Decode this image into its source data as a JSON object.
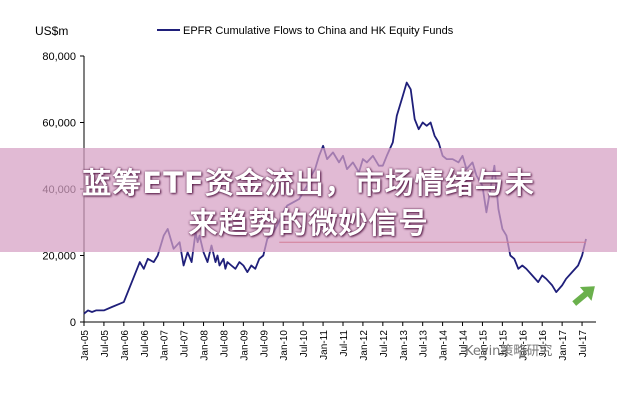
{
  "chart_data": {
    "type": "line",
    "title": "EPFR Cumulative Flows to China and HK Equity Funds",
    "ylabel": "US$m",
    "ylim": [
      0,
      80000
    ],
    "yticks": [
      "0",
      "20,000",
      "40,000",
      "60,000",
      "80,000"
    ],
    "ytick_values": [
      0,
      20000,
      40000,
      60000,
      80000
    ],
    "xticks": [
      "Jan-05",
      "Jul-05",
      "Jan-06",
      "Jul-06",
      "Jan-07",
      "Jul-07",
      "Jan-08",
      "Jul-08",
      "Jan-09",
      "Jul-09",
      "Jan-10",
      "Jul-10",
      "Jan-11",
      "Jul-11",
      "Jan-12",
      "Jul-12",
      "Jan-13",
      "Jul-13",
      "Jan-14",
      "Jul-14",
      "Jan-15",
      "Jul-15",
      "Jan-16",
      "Jul-16",
      "Jan-17",
      "Jul-17"
    ],
    "series": [
      {
        "name": "EPFR Cumulative Flows to China and HK Equity Funds",
        "color": "#1f1f7a",
        "x": [
          2005.0,
          2005.1,
          2005.2,
          2005.3,
          2005.5,
          2005.7,
          2005.9,
          2006.0,
          2006.2,
          2006.4,
          2006.5,
          2006.6,
          2006.75,
          2006.85,
          2007.0,
          2007.1,
          2007.25,
          2007.4,
          2007.5,
          2007.6,
          2007.7,
          2007.8,
          2007.85,
          2007.9,
          2008.0,
          2008.1,
          2008.2,
          2008.3,
          2008.35,
          2008.4,
          2008.5,
          2008.55,
          2008.6,
          2008.7,
          2008.8,
          2008.9,
          2009.0,
          2009.1,
          2009.2,
          2009.3,
          2009.4,
          2009.5,
          2009.6,
          2009.75,
          2009.85,
          2010.0,
          2010.1,
          2010.25,
          2010.4,
          2010.5,
          2010.6,
          2010.7,
          2010.8,
          2010.9,
          2011.0,
          2011.1,
          2011.25,
          2011.4,
          2011.5,
          2011.6,
          2011.75,
          2011.9,
          2012.0,
          2012.1,
          2012.25,
          2012.4,
          2012.5,
          2012.6,
          2012.75,
          2012.85,
          2013.0,
          2013.1,
          2013.2,
          2013.3,
          2013.4,
          2013.5,
          2013.6,
          2013.7,
          2013.8,
          2013.9,
          2014.0,
          2014.1,
          2014.25,
          2014.4,
          2014.5,
          2014.6,
          2014.75,
          2014.85,
          2015.0,
          2015.1,
          2015.2,
          2015.3,
          2015.4,
          2015.5,
          2015.6,
          2015.7,
          2015.8,
          2015.9,
          2016.0,
          2016.1,
          2016.25,
          2016.4,
          2016.5,
          2016.6,
          2016.75,
          2016.85,
          2017.0,
          2017.1,
          2017.25,
          2017.4,
          2017.5,
          2017.6
        ],
        "y": [
          2500,
          3500,
          3000,
          3500,
          3500,
          4500,
          5500,
          6000,
          12000,
          18000,
          16000,
          19000,
          18000,
          20000,
          26000,
          28000,
          22000,
          24000,
          17000,
          21000,
          18000,
          27000,
          24000,
          26000,
          21000,
          18000,
          23000,
          18000,
          20000,
          17000,
          19000,
          16000,
          18000,
          17000,
          16000,
          18000,
          17000,
          15000,
          17000,
          16000,
          19000,
          20000,
          25000,
          27000,
          29000,
          33000,
          35000,
          36000,
          37000,
          39000,
          41000,
          44000,
          46000,
          50000,
          53000,
          49000,
          51000,
          48000,
          50000,
          46000,
          48000,
          45000,
          49000,
          48000,
          50000,
          47000,
          47000,
          50000,
          54000,
          62000,
          68000,
          72000,
          70000,
          61000,
          58000,
          60000,
          59000,
          60000,
          56000,
          54000,
          50000,
          49000,
          49000,
          48000,
          50000,
          46000,
          48000,
          44000,
          41000,
          33000,
          40000,
          47000,
          34000,
          28000,
          26000,
          20000,
          19000,
          16000,
          17000,
          16000,
          14000,
          12000,
          14000,
          13000,
          11000,
          9000,
          11000,
          13000,
          15000,
          17000,
          20000,
          25000
        ]
      }
    ],
    "annotations": {
      "reference_line_value": 24000,
      "reference_line_color": "#cc2222",
      "arrow_color": "#6ab04c"
    }
  },
  "banner": {
    "line1": "蓝筹ETF资金流出，市场情绪与未",
    "line2": "来趋势的微妙信号",
    "color": "#d6a0c4"
  },
  "watermark": "Kevin策略研究"
}
